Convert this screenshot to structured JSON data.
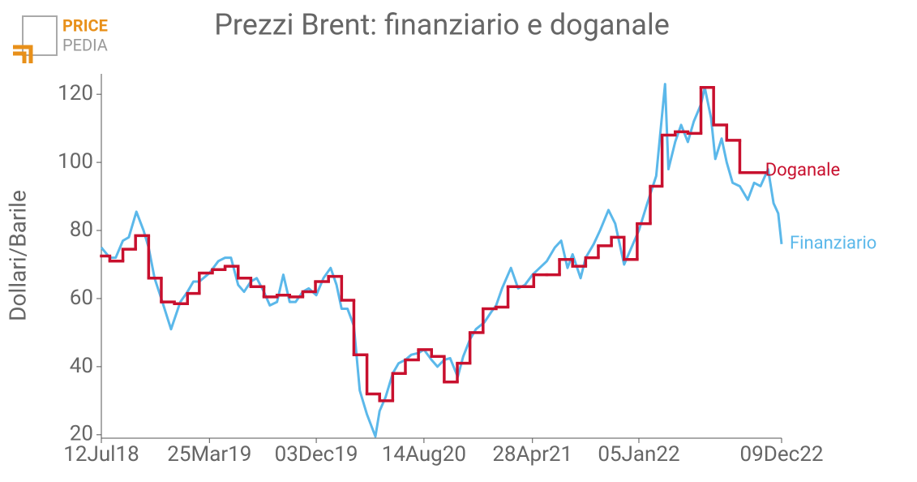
{
  "logo": {
    "line1": "PRICE",
    "line2": "PEDIA"
  },
  "chart_data": {
    "type": "line",
    "title": "Prezzi Brent: finanziario e doganale",
    "y_label": "Dollari/Barile",
    "ylim": [
      19,
      126
    ],
    "yticks": [
      20,
      40,
      60,
      80,
      100,
      120
    ],
    "xlim": [
      "2018-07-12",
      "2022-12-09"
    ],
    "xticks": [
      {
        "value": "2018-07-12",
        "label": "12Jul18"
      },
      {
        "value": "2019-03-25",
        "label": "25Mar19"
      },
      {
        "value": "2019-12-03",
        "label": "03Dec19"
      },
      {
        "value": "2020-08-14",
        "label": "14Aug20"
      },
      {
        "value": "2021-04-28",
        "label": "28Apr21"
      },
      {
        "value": "2022-01-05",
        "label": "05Jan22"
      },
      {
        "value": "2022-12-09",
        "label": "09Dec22"
      }
    ],
    "series": [
      {
        "name": "Finanziario",
        "color": "#5bb8ea",
        "style": "line",
        "x": [
          "2018-07-12",
          "2018-08-01",
          "2018-08-15",
          "2018-09-01",
          "2018-09-15",
          "2018-10-03",
          "2018-10-20",
          "2018-11-01",
          "2018-11-15",
          "2018-12-01",
          "2018-12-24",
          "2019-01-15",
          "2019-02-01",
          "2019-02-15",
          "2019-03-01",
          "2019-03-25",
          "2019-04-15",
          "2019-05-01",
          "2019-05-15",
          "2019-06-01",
          "2019-06-15",
          "2019-07-01",
          "2019-07-15",
          "2019-08-01",
          "2019-08-15",
          "2019-09-01",
          "2019-09-16",
          "2019-10-01",
          "2019-10-15",
          "2019-11-01",
          "2019-11-15",
          "2019-12-03",
          "2019-12-20",
          "2020-01-06",
          "2020-01-20",
          "2020-02-01",
          "2020-02-15",
          "2020-03-01",
          "2020-03-15",
          "2020-04-01",
          "2020-04-21",
          "2020-05-01",
          "2020-05-15",
          "2020-06-01",
          "2020-06-15",
          "2020-07-01",
          "2020-07-15",
          "2020-08-01",
          "2020-08-14",
          "2020-09-01",
          "2020-09-15",
          "2020-10-01",
          "2020-10-15",
          "2020-11-02",
          "2020-11-15",
          "2020-12-01",
          "2020-12-15",
          "2021-01-04",
          "2021-01-20",
          "2021-02-01",
          "2021-02-15",
          "2021-03-08",
          "2021-03-25",
          "2021-04-10",
          "2021-04-28",
          "2021-05-15",
          "2021-06-01",
          "2021-06-20",
          "2021-07-05",
          "2021-07-20",
          "2021-08-01",
          "2021-08-20",
          "2021-09-01",
          "2021-09-20",
          "2021-10-05",
          "2021-10-25",
          "2021-11-10",
          "2021-12-01",
          "2021-12-15",
          "2022-01-05",
          "2022-01-25",
          "2022-02-15",
          "2022-03-08",
          "2022-03-16",
          "2022-04-01",
          "2022-04-15",
          "2022-05-01",
          "2022-05-15",
          "2022-06-01",
          "2022-06-10",
          "2022-06-25",
          "2022-07-05",
          "2022-07-20",
          "2022-08-01",
          "2022-08-15",
          "2022-09-01",
          "2022-09-20",
          "2022-10-05",
          "2022-10-20",
          "2022-11-07",
          "2022-11-20",
          "2022-12-01",
          "2022-12-09"
        ],
        "values": [
          75,
          72,
          72,
          77,
          78,
          85.5,
          80,
          75,
          66,
          60,
          51,
          59,
          62,
          65,
          65,
          67.5,
          71,
          72,
          72,
          64,
          62,
          65,
          66,
          62,
          58,
          59,
          67,
          59,
          59,
          62,
          63,
          61,
          66,
          69,
          64,
          57,
          57,
          52,
          33,
          26,
          19.5,
          27,
          31,
          38,
          41,
          42,
          43.5,
          44,
          45,
          42,
          40,
          42,
          42.5,
          37,
          43,
          48,
          51,
          53,
          56,
          58,
          63,
          69,
          63,
          64,
          67,
          69,
          71,
          75,
          77,
          69,
          73,
          66,
          72,
          76,
          80,
          86,
          82,
          70,
          74,
          80,
          88,
          96,
          123,
          98,
          106,
          111,
          106,
          112,
          117,
          122,
          113,
          101,
          107,
          100,
          94,
          93,
          89,
          94,
          93,
          98,
          88,
          85,
          76
        ]
      },
      {
        "name": "Doganale",
        "color": "#c8102e",
        "style": "step",
        "x": [
          "2018-07-12",
          "2018-08-01",
          "2018-09-01",
          "2018-10-01",
          "2018-11-01",
          "2018-12-01",
          "2019-01-01",
          "2019-02-01",
          "2019-03-01",
          "2019-04-01",
          "2019-05-01",
          "2019-06-01",
          "2019-07-01",
          "2019-08-01",
          "2019-09-01",
          "2019-10-01",
          "2019-11-01",
          "2019-12-01",
          "2020-01-01",
          "2020-02-01",
          "2020-03-01",
          "2020-04-01",
          "2020-05-01",
          "2020-06-01",
          "2020-07-01",
          "2020-08-01",
          "2020-09-01",
          "2020-10-01",
          "2020-11-01",
          "2020-12-01",
          "2021-01-01",
          "2021-02-01",
          "2021-03-01",
          "2021-04-01",
          "2021-05-01",
          "2021-06-01",
          "2021-07-01",
          "2021-08-01",
          "2021-09-01",
          "2021-10-01",
          "2021-11-01",
          "2021-12-01",
          "2022-01-01",
          "2022-02-01",
          "2022-03-01",
          "2022-04-01",
          "2022-05-01",
          "2022-06-01",
          "2022-07-01",
          "2022-08-01",
          "2022-09-01",
          "2022-10-01"
        ],
        "values": [
          72.5,
          71,
          74.5,
          78.5,
          66,
          59,
          58.5,
          61.5,
          67.5,
          68.5,
          69.5,
          66,
          63.5,
          60.5,
          61,
          60.5,
          62,
          65,
          66.5,
          59.5,
          43.5,
          32,
          30,
          38,
          42,
          45,
          43,
          35.5,
          41,
          50,
          57,
          57.5,
          63.5,
          63.5,
          67,
          67,
          71.5,
          69.5,
          72,
          75.5,
          78,
          71.5,
          82,
          93,
          108,
          109,
          108.5,
          122,
          111,
          106.5,
          97,
          97
        ]
      }
    ]
  }
}
